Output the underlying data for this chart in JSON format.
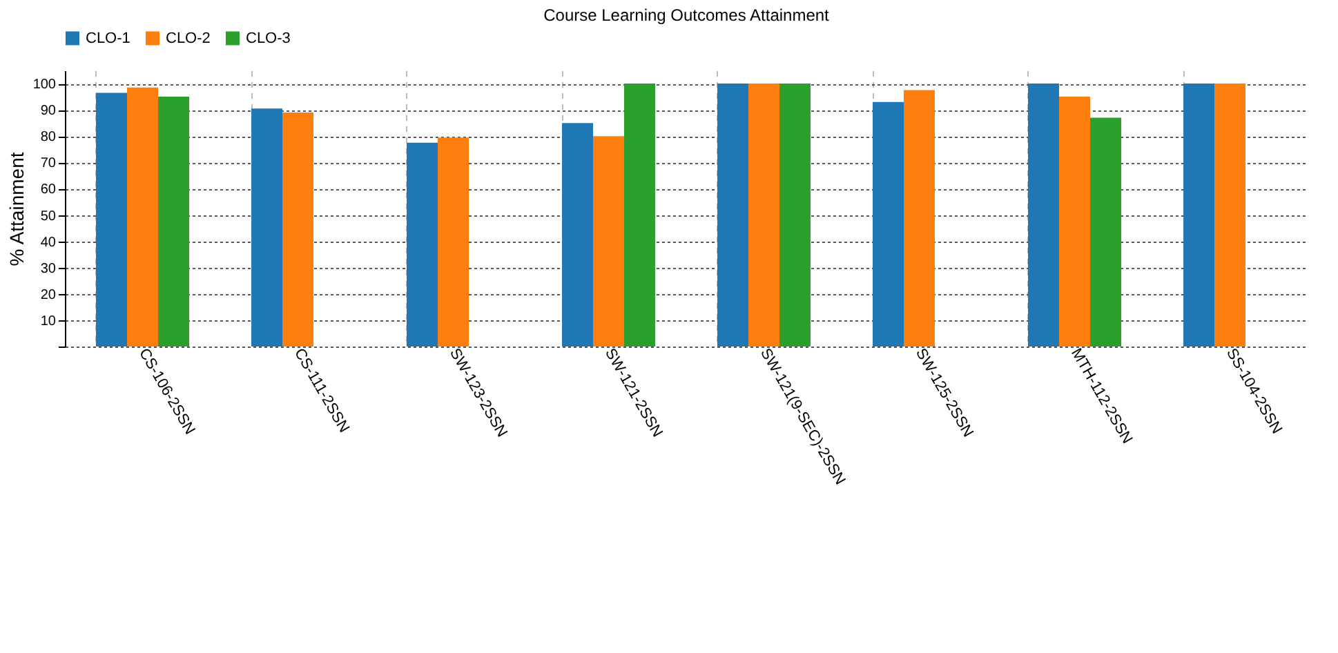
{
  "chart_data": {
    "type": "bar",
    "title": "Course Learning Outcomes Attainment",
    "ylabel": "% Attainment",
    "categories": [
      "CS-106-2SSN",
      "CS-111-2SSN",
      "SW-123-2SSN",
      "SW-121-2SSN",
      "SW-121(9-SEC)-2SSN",
      "SW-125-2SSN",
      "MTH-112-2SSN",
      "SS-104-2SSN"
    ],
    "series": [
      {
        "name": "CLO-1",
        "color": "#1f77b4",
        "values": [
          96.5,
          90.5,
          77.5,
          85,
          100,
          93,
          100,
          100
        ]
      },
      {
        "name": "CLO-2",
        "color": "#ff7f0e",
        "values": [
          98.5,
          89,
          79.5,
          80,
          100,
          97.5,
          95,
          100
        ]
      },
      {
        "name": "CLO-3",
        "color": "#2ca02c",
        "values": [
          95,
          0,
          0,
          100,
          100,
          0,
          87,
          0
        ]
      }
    ],
    "ylim": [
      0,
      105
    ],
    "yticks": [
      {
        "value": 0,
        "label": null
      },
      10,
      20,
      30,
      40,
      50,
      60,
      70,
      80,
      90,
      100
    ],
    "grid": true,
    "legend": "top left"
  }
}
